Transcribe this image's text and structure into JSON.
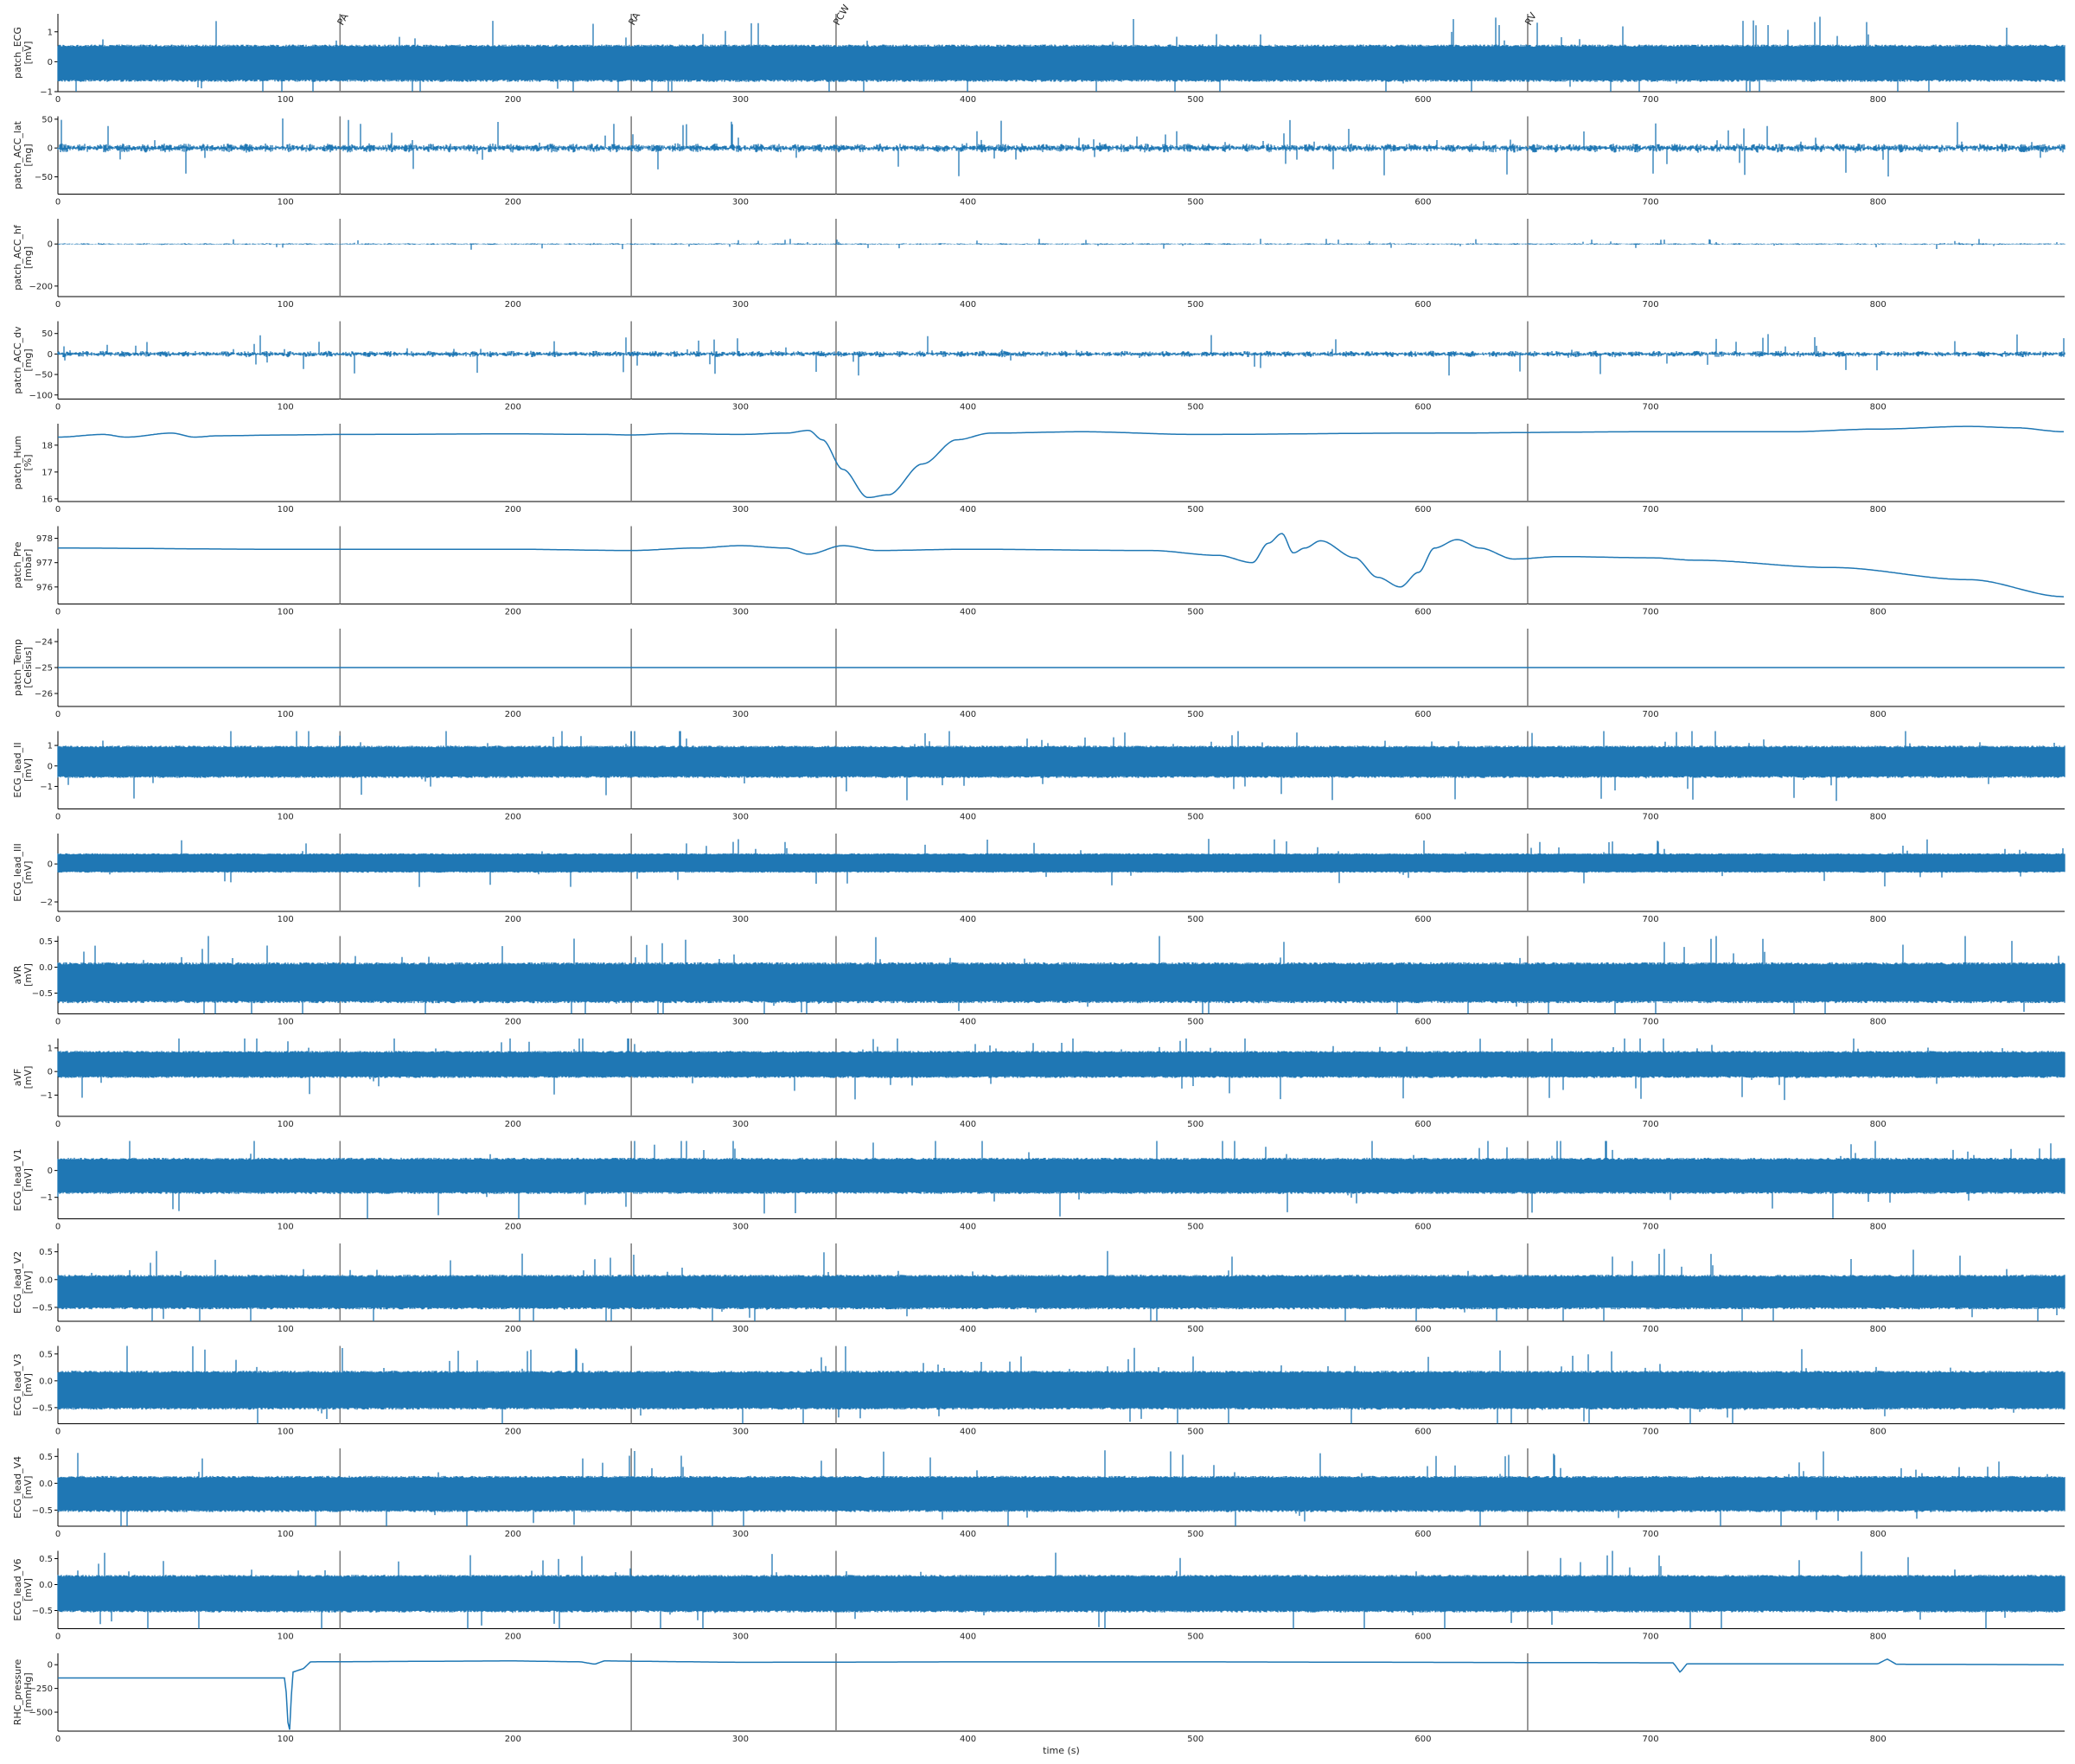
{
  "chart_data": {
    "type": "line",
    "xlabel": "time (s)",
    "xlim": [
      0,
      882
    ],
    "x_ticks": [
      0,
      100,
      200,
      300,
      400,
      500,
      600,
      700,
      800
    ],
    "series_color": "#1f77b4",
    "event_line_color": "#808080",
    "events": [
      {
        "x": 124,
        "label": "PA"
      },
      {
        "x": 252,
        "label": "RA"
      },
      {
        "x": 342,
        "label": "PCW"
      },
      {
        "x": 646,
        "label": "RV"
      }
    ],
    "panels": [
      {
        "name": "patch_ECG",
        "unit": "[mV]",
        "ylim": [
          -1,
          1.6
        ],
        "yticks": [
          -1,
          0,
          1
        ],
        "yticklabels": [
          "−1",
          "0",
          "1"
        ],
        "kind": "ecg",
        "base": 0.3,
        "lo": -0.6,
        "hi": 0.5,
        "amp": 0.5
      },
      {
        "name": "patch_ACC_lat",
        "unit": "[mg]",
        "ylim": [
          -80,
          55
        ],
        "yticks": [
          -50,
          0,
          50
        ],
        "yticklabels": [
          "−50",
          "0",
          "50"
        ],
        "kind": "noise",
        "base": 0,
        "amp": 8
      },
      {
        "name": "patch_ACC_hf",
        "unit": "[mg]",
        "ylim": [
          -250,
          120
        ],
        "yticks": [
          -200,
          0
        ],
        "yticklabels": [
          "−200",
          "0"
        ],
        "kind": "noise",
        "base": 0,
        "amp": 4
      },
      {
        "name": "patch_ACC_dv",
        "unit": "[mg]",
        "ylim": [
          -110,
          80
        ],
        "yticks": [
          -100,
          -50,
          0,
          50
        ],
        "yticklabels": [
          "−100",
          "−50",
          "0",
          "50"
        ],
        "kind": "noise",
        "base": 0,
        "amp": 8
      },
      {
        "name": "patch_Hum",
        "unit": "[%]",
        "ylim": [
          15.9,
          18.8
        ],
        "yticks": [
          16,
          17,
          18
        ],
        "yticklabels": [
          "16",
          "17",
          "18"
        ],
        "kind": "smooth",
        "points": [
          [
            0,
            18.3
          ],
          [
            20,
            18.4
          ],
          [
            30,
            18.3
          ],
          [
            50,
            18.45
          ],
          [
            60,
            18.3
          ],
          [
            70,
            18.35
          ],
          [
            100,
            18.38
          ],
          [
            124,
            18.4
          ],
          [
            200,
            18.42
          ],
          [
            240,
            18.4
          ],
          [
            252,
            18.38
          ],
          [
            270,
            18.43
          ],
          [
            300,
            18.4
          ],
          [
            320,
            18.45
          ],
          [
            330,
            18.55
          ],
          [
            336,
            18.2
          ],
          [
            345,
            17.1
          ],
          [
            356,
            16.05
          ],
          [
            365,
            16.15
          ],
          [
            380,
            17.3
          ],
          [
            395,
            18.2
          ],
          [
            410,
            18.45
          ],
          [
            450,
            18.5
          ],
          [
            500,
            18.4
          ],
          [
            600,
            18.45
          ],
          [
            700,
            18.5
          ],
          [
            760,
            18.5
          ],
          [
            800,
            18.6
          ],
          [
            840,
            18.7
          ],
          [
            860,
            18.65
          ],
          [
            882,
            18.5
          ]
        ]
      },
      {
        "name": "patch_Pre",
        "unit": "[mbar]",
        "ylim": [
          975.3,
          978.5
        ],
        "yticks": [
          976,
          977,
          978
        ],
        "yticklabels": [
          "976",
          "977",
          "978"
        ],
        "kind": "smooth",
        "points": [
          [
            0,
            977.6
          ],
          [
            100,
            977.55
          ],
          [
            200,
            977.55
          ],
          [
            252,
            977.5
          ],
          [
            280,
            977.6
          ],
          [
            300,
            977.7
          ],
          [
            320,
            977.6
          ],
          [
            330,
            977.35
          ],
          [
            345,
            977.7
          ],
          [
            360,
            977.5
          ],
          [
            400,
            977.55
          ],
          [
            480,
            977.5
          ],
          [
            510,
            977.3
          ],
          [
            525,
            977.0
          ],
          [
            532,
            977.8
          ],
          [
            538,
            978.2
          ],
          [
            543,
            977.4
          ],
          [
            548,
            977.6
          ],
          [
            555,
            977.9
          ],
          [
            570,
            977.2
          ],
          [
            580,
            976.4
          ],
          [
            590,
            976.0
          ],
          [
            598,
            976.6
          ],
          [
            605,
            977.6
          ],
          [
            615,
            977.95
          ],
          [
            625,
            977.6
          ],
          [
            640,
            977.15
          ],
          [
            660,
            977.25
          ],
          [
            700,
            977.2
          ],
          [
            720,
            977.1
          ],
          [
            780,
            976.8
          ],
          [
            840,
            976.3
          ],
          [
            882,
            975.6
          ]
        ]
      },
      {
        "name": "patch_Temp",
        "unit": "[Celsius]",
        "ylim": [
          -26.5,
          -23.5
        ],
        "yticks": [
          -26,
          -25,
          -24
        ],
        "yticklabels": [
          "−26",
          "−25",
          "−24"
        ],
        "kind": "flat",
        "base": -25
      },
      {
        "name": "ECG_lead_II",
        "unit": "[mV]",
        "ylim": [
          -2.1,
          1.7
        ],
        "yticks": [
          -1,
          0,
          1
        ],
        "yticklabels": [
          "−1",
          "0",
          "1"
        ],
        "kind": "ecg",
        "base": 0.3,
        "lo": -0.5,
        "hi": 0.9,
        "amp": 0.6
      },
      {
        "name": "ECG_lead_III",
        "unit": "[mV]",
        "ylim": [
          -2.5,
          1.6
        ],
        "yticks": [
          -2,
          0
        ],
        "yticklabels": [
          "−2",
          "0"
        ],
        "kind": "ecg",
        "base": 0.2,
        "lo": -0.4,
        "hi": 0.5,
        "amp": 0.4
      },
      {
        "name": "aVR",
        "unit": "[mV]",
        "ylim": [
          -0.9,
          0.6
        ],
        "yticks": [
          -0.5,
          0.0,
          0.5
        ],
        "yticklabels": [
          "−0.5",
          "0.0",
          "0.5"
        ],
        "kind": "ecg",
        "base": -0.3,
        "lo": -0.65,
        "hi": 0.05,
        "amp": 0.3
      },
      {
        "name": "aVF",
        "unit": "[mV]",
        "ylim": [
          -1.9,
          1.4
        ],
        "yticks": [
          -1,
          0,
          1
        ],
        "yticklabels": [
          "−1",
          "0",
          "1"
        ],
        "kind": "ecg",
        "base": 0.3,
        "lo": -0.2,
        "hi": 0.8,
        "amp": 0.5
      },
      {
        "name": "ECG_lead_V1",
        "unit": "[mV]",
        "ylim": [
          -1.8,
          1.1
        ],
        "yticks": [
          -1,
          0
        ],
        "yticklabels": [
          "−1",
          "0"
        ],
        "kind": "ecg",
        "base": -0.3,
        "lo": -0.8,
        "hi": 0.4,
        "amp": 0.5
      },
      {
        "name": "ECG_lead_V2",
        "unit": "[mV]",
        "ylim": [
          -0.75,
          0.65
        ],
        "yticks": [
          -0.5,
          0.0,
          0.5
        ],
        "yticklabels": [
          "−0.5",
          "0.0",
          "0.5"
        ],
        "kind": "ecg",
        "base": -0.3,
        "lo": -0.5,
        "hi": 0.05,
        "amp": 0.25
      },
      {
        "name": "ECG_lead_V3",
        "unit": "[mV]",
        "ylim": [
          -0.8,
          0.65
        ],
        "yticks": [
          -0.5,
          0.0,
          0.5
        ],
        "yticklabels": [
          "−0.5",
          "0.0",
          "0.5"
        ],
        "kind": "ecg",
        "base": -0.2,
        "lo": -0.5,
        "hi": 0.15,
        "amp": 0.25
      },
      {
        "name": "ECG_lead_V4",
        "unit": "[mV]",
        "ylim": [
          -0.8,
          0.65
        ],
        "yticks": [
          -0.5,
          0.0,
          0.5
        ],
        "yticklabels": [
          "−0.5",
          "0.0",
          "0.5"
        ],
        "kind": "ecg",
        "base": -0.25,
        "lo": -0.5,
        "hi": 0.1,
        "amp": 0.25
      },
      {
        "name": "ECG_lead_V6",
        "unit": "[mV]",
        "ylim": [
          -0.85,
          0.65
        ],
        "yticks": [
          -0.5,
          0.0,
          0.5
        ],
        "yticklabels": [
          "−0.5",
          "0.0",
          "0.5"
        ],
        "kind": "ecg",
        "base": -0.2,
        "lo": -0.5,
        "hi": 0.15,
        "amp": 0.25
      },
      {
        "name": "RHC_pressure",
        "unit": "[mmHg]",
        "ylim": [
          -700,
          120
        ],
        "yticks": [
          -500,
          -250,
          0
        ],
        "yticklabels": [
          "−500",
          "−250",
          "0"
        ],
        "kind": "step",
        "points": [
          [
            0,
            -140
          ],
          [
            100,
            -140
          ],
          [
            101,
            -600
          ],
          [
            102,
            -700
          ],
          [
            103,
            -80
          ],
          [
            108,
            -40
          ],
          [
            111,
            30
          ],
          [
            200,
            40
          ],
          [
            230,
            30
          ],
          [
            236,
            5
          ],
          [
            240,
            40
          ],
          [
            300,
            25
          ],
          [
            400,
            30
          ],
          [
            500,
            30
          ],
          [
            600,
            25
          ],
          [
            700,
            20
          ],
          [
            710,
            20
          ],
          [
            713,
            -80
          ],
          [
            716,
            10
          ],
          [
            780,
            10
          ],
          [
            800,
            10
          ],
          [
            804,
            60
          ],
          [
            808,
            5
          ],
          [
            882,
            0
          ]
        ]
      }
    ]
  }
}
